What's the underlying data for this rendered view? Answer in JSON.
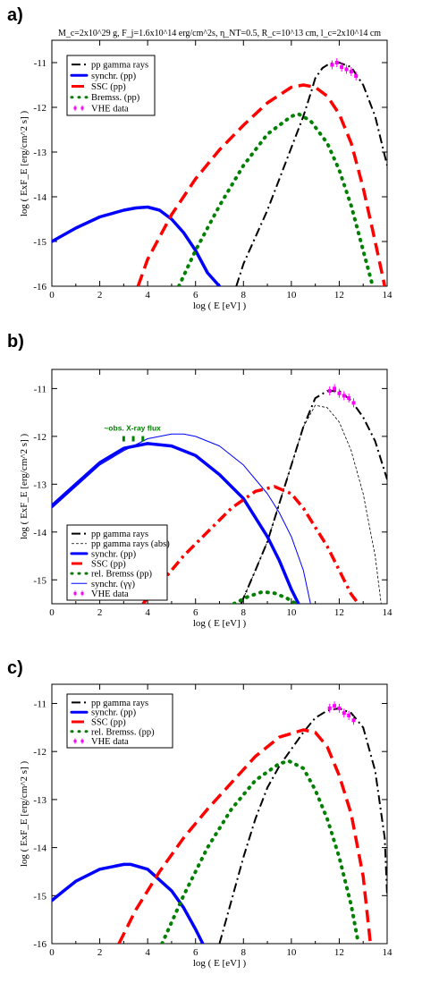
{
  "chart_data": [
    {
      "type": "line",
      "panel_label": "a)",
      "title": "M_c=2x10^29 g, F_j=1.6x10^14 erg/cm^2s, η_NT=0.5, R_c=10^13 cm, l_c=2x10^14 cm",
      "xlabel": "log ( E [eV] )",
      "ylabel": "log ( ExF_E [erg/cm^2 s] )",
      "xlim": [
        0,
        14
      ],
      "ylim": [
        -16,
        -10.5
      ],
      "xticks": [
        "0",
        "2",
        "4",
        "6",
        "8",
        "10",
        "12",
        "14"
      ],
      "yticks": [
        "-16",
        "-15",
        "-14",
        "-13",
        "-12",
        "-11"
      ],
      "legend_position": "top-left",
      "series": [
        {
          "name": "pp gamma rays",
          "style": "dashdot",
          "color": "#000000",
          "x": [
            7.7,
            8.0,
            8.5,
            9.0,
            9.5,
            10.0,
            10.5,
            10.8,
            11.0,
            11.3,
            11.6,
            12.0,
            12.5,
            13.0,
            13.5,
            14.0
          ],
          "y": [
            -16,
            -15.5,
            -14.9,
            -14.3,
            -13.6,
            -12.9,
            -12.2,
            -11.7,
            -11.35,
            -11.12,
            -11.02,
            -11.0,
            -11.1,
            -11.5,
            -12.2,
            -13.3
          ]
        },
        {
          "name": "synchr. (pp)",
          "style": "solid-thick",
          "color": "#0000ff",
          "x": [
            0,
            0.5,
            1,
            2,
            3,
            3.5,
            4,
            4.5,
            5,
            5.5,
            6,
            6.5,
            7
          ],
          "y": [
            -15,
            -14.85,
            -14.7,
            -14.45,
            -14.3,
            -14.25,
            -14.23,
            -14.3,
            -14.5,
            -14.8,
            -15.2,
            -15.7,
            -16
          ]
        },
        {
          "name": "SSC (pp)",
          "style": "dashed-thick",
          "color": "#ff0000",
          "x": [
            3.6,
            4,
            5,
            6,
            7,
            8,
            9,
            10,
            10.5,
            11,
            11.5,
            12,
            12.5,
            13,
            13.5,
            13.9
          ],
          "y": [
            -16,
            -15.4,
            -14.4,
            -13.6,
            -12.95,
            -12.4,
            -11.9,
            -11.55,
            -11.5,
            -11.55,
            -11.75,
            -12.15,
            -12.8,
            -13.8,
            -15.0,
            -16
          ]
        },
        {
          "name": "Bremss. (pp)",
          "style": "dotted-thick",
          "color": "#008000",
          "x": [
            5.3,
            6,
            7,
            8,
            9,
            10,
            10.3,
            10.8,
            11.5,
            12,
            12.5,
            13,
            13.4
          ],
          "y": [
            -16,
            -15.2,
            -14.2,
            -13.3,
            -12.6,
            -12.2,
            -12.15,
            -12.3,
            -12.8,
            -13.4,
            -14.2,
            -15.2,
            -16
          ]
        }
      ],
      "vhe_data": {
        "name": "VHE data",
        "color": "#ff00ff",
        "x": [
          11.7,
          11.9,
          12.1,
          12.3,
          12.5,
          12.7
        ],
        "y": [
          -11.05,
          -11.0,
          -11.1,
          -11.15,
          -11.2,
          -11.3
        ]
      }
    },
    {
      "type": "line",
      "panel_label": "b)",
      "xlabel": "log ( E [eV] )",
      "ylabel": "log ( ExF_E [erg/cm^2 s] )",
      "xlim": [
        0,
        14
      ],
      "ylim": [
        -15.5,
        -10.6
      ],
      "xticks": [
        "0",
        "2",
        "4",
        "6",
        "8",
        "10",
        "12",
        "14"
      ],
      "yticks": [
        "-15",
        "-14",
        "-13",
        "-12",
        "-11"
      ],
      "legend_position": "bottom-left",
      "annotation": "~obs. X-ray flux",
      "series": [
        {
          "name": "pp gamma rays",
          "style": "dashdot",
          "color": "#000000",
          "x": [
            7.9,
            8.5,
            9,
            9.5,
            10,
            10.5,
            11,
            11.5,
            12,
            12.5,
            13,
            13.5,
            14
          ],
          "y": [
            -15.5,
            -14.8,
            -14.2,
            -13.4,
            -12.6,
            -11.8,
            -11.2,
            -11.05,
            -11.05,
            -11.25,
            -11.6,
            -12.1,
            -12.9
          ]
        },
        {
          "name": "pp gamma rays (abs)",
          "style": "thin-dashed",
          "color": "#000000",
          "x": [
            7.9,
            8.5,
            9,
            9.5,
            10,
            10.5,
            11,
            11.5,
            12,
            12.5,
            13,
            13.5,
            13.75
          ],
          "y": [
            -15.5,
            -14.8,
            -14.2,
            -13.4,
            -12.6,
            -11.8,
            -11.35,
            -11.4,
            -11.7,
            -12.3,
            -13.2,
            -14.5,
            -15.5
          ]
        },
        {
          "name": "synchr. (pp)",
          "style": "solid-thick",
          "color": "#0000ff",
          "x": [
            0,
            1,
            2,
            3,
            4,
            5,
            6,
            7,
            8,
            9,
            9.5,
            10,
            10.3
          ],
          "y": [
            -13.45,
            -13.0,
            -12.55,
            -12.25,
            -12.15,
            -12.2,
            -12.4,
            -12.8,
            -13.3,
            -14.1,
            -14.6,
            -15.2,
            -15.5
          ]
        },
        {
          "name": "SSC (pp)",
          "style": "dashdot-thick",
          "color": "#ff0000",
          "x": [
            3.8,
            4.5,
            5.5,
            6.5,
            7.5,
            8.5,
            9.3,
            10,
            10.5,
            11,
            11.5,
            12,
            12.5,
            12.8
          ],
          "y": [
            -15.5,
            -15.1,
            -14.5,
            -14.0,
            -13.5,
            -13.15,
            -13.05,
            -13.2,
            -13.5,
            -13.9,
            -14.3,
            -14.8,
            -15.3,
            -15.5
          ]
        },
        {
          "name": "rel. Bremss (pp)",
          "style": "dotted-thick",
          "color": "#008000",
          "x": [
            7.6,
            8.2,
            8.8,
            9.3,
            9.8,
            10.2
          ],
          "y": [
            -15.5,
            -15.35,
            -15.25,
            -15.28,
            -15.38,
            -15.5
          ]
        },
        {
          "name": "synchr. (γγ)",
          "style": "solid-thin",
          "color": "#0000ff",
          "x": [
            0,
            1,
            2,
            3,
            4,
            5,
            5.5,
            6,
            7,
            8,
            9,
            9.5,
            10,
            10.5,
            10.8
          ],
          "y": [
            -13.5,
            -13.05,
            -12.6,
            -12.3,
            -12.05,
            -11.95,
            -11.95,
            -12.0,
            -12.2,
            -12.6,
            -13.2,
            -13.6,
            -14.1,
            -14.8,
            -15.5
          ]
        }
      ],
      "xray_markers": {
        "x": [
          3.0,
          3.4,
          3.8
        ],
        "y": [
          -12.05,
          -12.05,
          -12.05
        ]
      },
      "vhe_data": {
        "name": "VHE data",
        "color": "#ff00ff",
        "x": [
          11.6,
          11.8,
          12.0,
          12.2,
          12.4,
          12.6
        ],
        "y": [
          -11.05,
          -11.0,
          -11.1,
          -11.15,
          -11.2,
          -11.3
        ]
      }
    },
    {
      "type": "line",
      "panel_label": "c)",
      "xlabel": "log ( E [eV] )",
      "ylabel": "log ( ExF_E [erg/cm^2 s] )",
      "xlim": [
        0,
        14
      ],
      "ylim": [
        -16,
        -10.6
      ],
      "xticks": [
        "0",
        "2",
        "4",
        "6",
        "8",
        "10",
        "12",
        "14"
      ],
      "yticks": [
        "-16",
        "-15",
        "-14",
        "-13",
        "-12",
        "-11"
      ],
      "legend_position": "top-left",
      "series": [
        {
          "name": "pp gamma rays",
          "style": "dashdot",
          "color": "#000000",
          "x": [
            7.0,
            7.5,
            8,
            8.5,
            9,
            9.5,
            10,
            10.5,
            11,
            11.5,
            12,
            12.5,
            13,
            13.5,
            13.9,
            14
          ],
          "y": [
            -16,
            -15.1,
            -14.2,
            -13.4,
            -12.75,
            -12.3,
            -11.95,
            -11.6,
            -11.3,
            -11.15,
            -11.1,
            -11.2,
            -11.5,
            -12.4,
            -13.8,
            -15.0
          ]
        },
        {
          "name": "synchr. (pp)",
          "style": "solid-thick",
          "color": "#0000ff",
          "x": [
            0,
            0.5,
            1,
            2,
            3,
            3.3,
            4,
            5,
            5.5,
            6,
            6.3
          ],
          "y": [
            -15.1,
            -14.9,
            -14.7,
            -14.45,
            -14.35,
            -14.35,
            -14.45,
            -14.9,
            -15.25,
            -15.7,
            -16
          ]
        },
        {
          "name": "SSC (pp)",
          "style": "dashed-thick",
          "color": "#ff0000",
          "x": [
            2.8,
            3.5,
            4.5,
            5.5,
            6.5,
            7.5,
            8.5,
            9.5,
            10.5,
            11,
            11.5,
            12,
            12.5,
            13,
            13.3
          ],
          "y": [
            -16,
            -15.3,
            -14.5,
            -13.8,
            -13.2,
            -12.65,
            -12.1,
            -11.7,
            -11.55,
            -11.6,
            -11.9,
            -12.5,
            -13.3,
            -14.6,
            -16
          ]
        },
        {
          "name": "rel. Bremss. (pp)",
          "style": "dotted-thick",
          "color": "#008000",
          "x": [
            4.6,
            5.5,
            6.5,
            7.5,
            8.5,
            9.5,
            9.9,
            10.5,
            11,
            11.5,
            12,
            12.5,
            12.8
          ],
          "y": [
            -16,
            -15.0,
            -14.0,
            -13.2,
            -12.6,
            -12.25,
            -12.2,
            -12.35,
            -12.8,
            -13.4,
            -14.2,
            -15.2,
            -16
          ]
        }
      ],
      "vhe_data": {
        "name": "VHE data",
        "color": "#ff00ff",
        "x": [
          11.6,
          11.8,
          12.0,
          12.2,
          12.4,
          12.6
        ],
        "y": [
          -11.1,
          -11.05,
          -11.1,
          -11.2,
          -11.25,
          -11.35
        ]
      }
    }
  ]
}
